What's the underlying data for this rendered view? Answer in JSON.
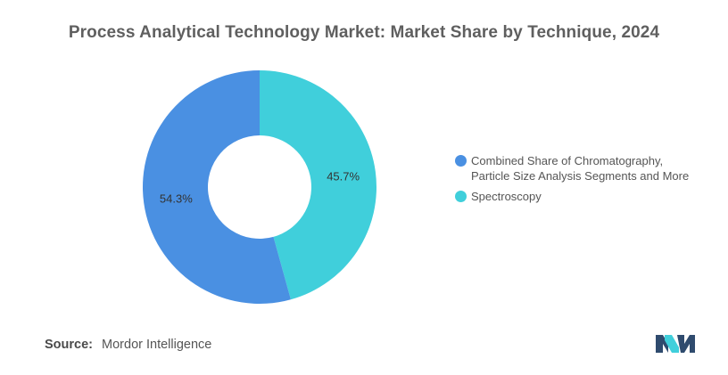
{
  "title": "Process Analytical Technology Market: Market Share by Technique, 2024",
  "chart_data": {
    "type": "pie",
    "donut": true,
    "categories": [
      "Combined Share of Chromatography,\nParticle Size Analysis Segments and More",
      "Spectroscopy"
    ],
    "values": [
      54.3,
      45.7
    ],
    "value_labels": [
      "54.3%",
      "45.7%"
    ],
    "colors": [
      "#4a90e2",
      "#40cfdb"
    ],
    "legend_placement": "right",
    "title": "Process Analytical Technology Market: Market Share by Technique, 2024"
  },
  "source": {
    "label": "Source:",
    "value": "Mordor Intelligence"
  },
  "logo": {
    "icon": "mordor-intelligence-logo-icon",
    "colors": [
      "#2f4b6e",
      "#40cfdb"
    ]
  }
}
